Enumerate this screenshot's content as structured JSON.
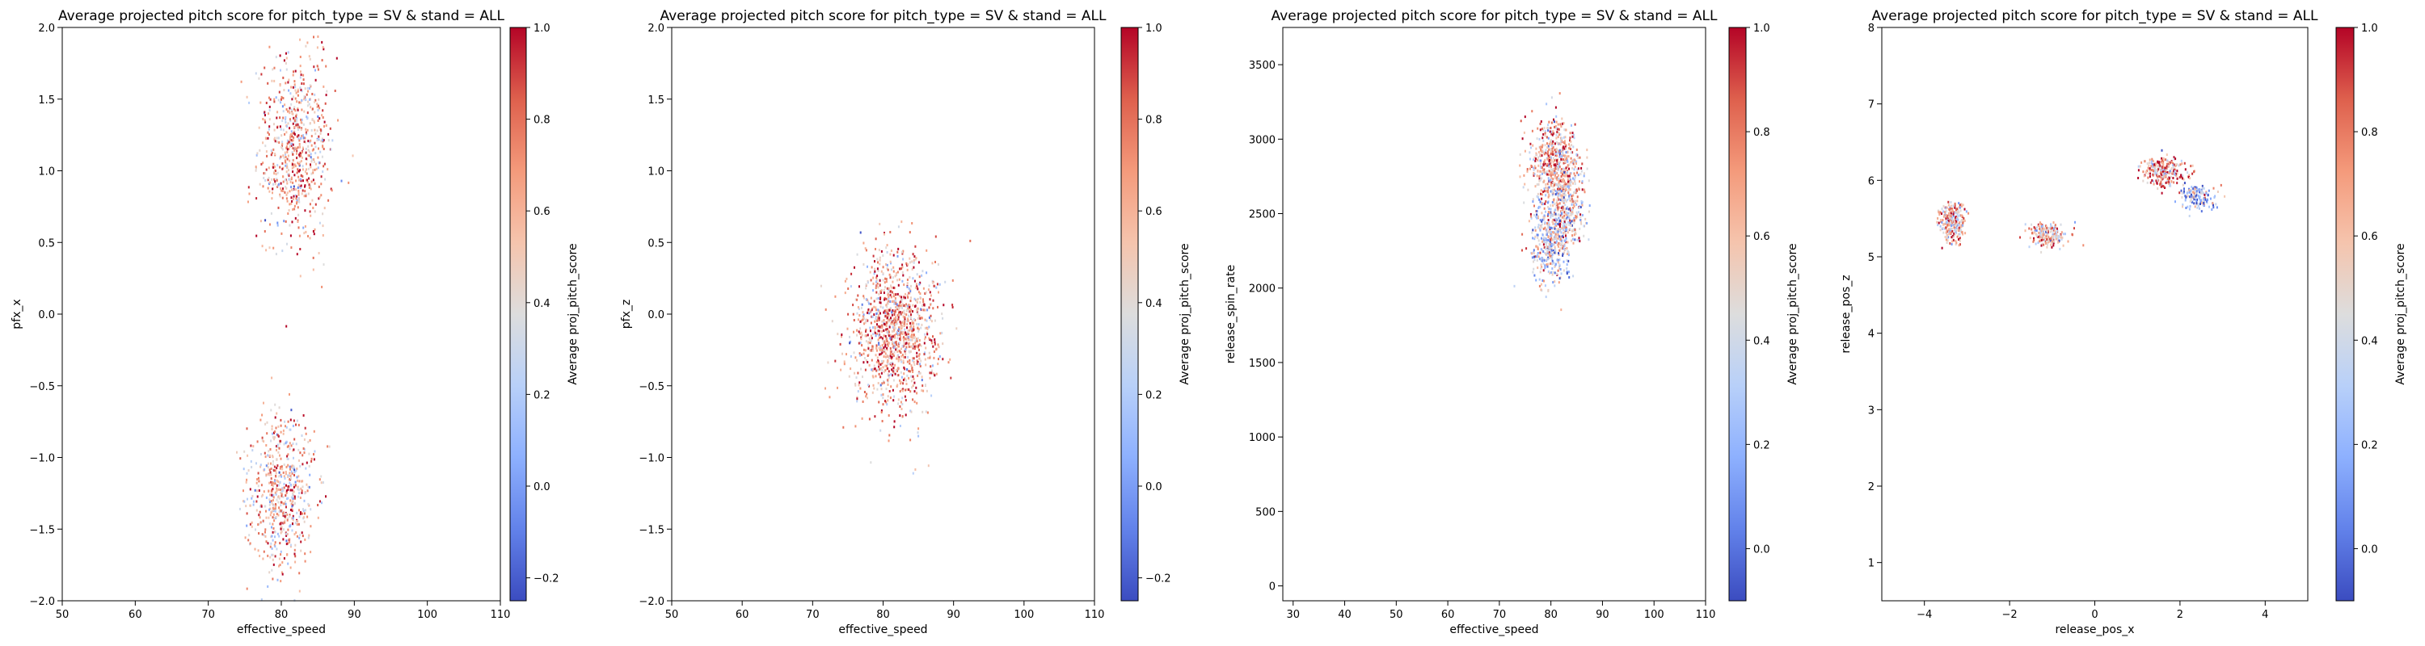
{
  "figure": {
    "title": "Average projected pitch score for pitch_type = SV & stand = ALL"
  },
  "chart_data": [
    {
      "type": "heatmap",
      "title": "Average projected pitch score for pitch_type = SV & stand = ALL",
      "xlabel": "effective_speed",
      "ylabel": "pfx_x",
      "xlim": [
        50,
        110
      ],
      "ylim": [
        -2.0,
        2.0
      ],
      "x_ticks": [
        "50",
        "60",
        "70",
        "80",
        "90",
        "100",
        "110"
      ],
      "y_ticks": [
        "−2.0",
        "−1.5",
        "−1.0",
        "−0.5",
        "0.0",
        "0.5",
        "1.0",
        "1.5",
        "2.0"
      ],
      "colorbar": {
        "label": "Average proj_pitch_score",
        "vmin": -0.25,
        "vmax": 1.0,
        "ticks": [
          "−0.2",
          "0.0",
          "0.2",
          "0.4",
          "0.6",
          "0.8",
          "1.0"
        ],
        "cmap": "coolwarm"
      },
      "clusters": [
        {
          "x": 82,
          "y": 1.15,
          "sx": 2.6,
          "sy": 0.32,
          "count": 700,
          "mean": 0.62
        },
        {
          "x": 80,
          "y": -1.25,
          "sx": 2.3,
          "sy": 0.28,
          "count": 600,
          "mean": 0.6
        }
      ],
      "grid": false
    },
    {
      "type": "heatmap",
      "title": "Average projected pitch score for pitch_type = SV & stand = ALL",
      "xlabel": "effective_speed",
      "ylabel": "pfx_z",
      "xlim": [
        50,
        110
      ],
      "ylim": [
        -2.0,
        2.0
      ],
      "x_ticks": [
        "50",
        "60",
        "70",
        "80",
        "90",
        "100",
        "110"
      ],
      "y_ticks": [
        "−2.0",
        "−1.5",
        "−1.0",
        "−0.5",
        "0.0",
        "0.5",
        "1.0",
        "1.5",
        "2.0"
      ],
      "colorbar": {
        "label": "Average proj_pitch_score",
        "vmin": -0.25,
        "vmax": 1.0,
        "ticks": [
          "−0.2",
          "0.0",
          "0.2",
          "0.4",
          "0.6",
          "0.8",
          "1.0"
        ],
        "cmap": "coolwarm"
      },
      "clusters": [
        {
          "x": 81.5,
          "y": -0.1,
          "sx": 3.0,
          "sy": 0.28,
          "count": 1200,
          "mean": 0.64
        }
      ],
      "grid": false
    },
    {
      "type": "heatmap",
      "title": "Average projected pitch score for pitch_type = SV & stand = ALL",
      "xlabel": "effective_speed",
      "ylabel": "release_spin_rate",
      "xlim": [
        28,
        110
      ],
      "ylim": [
        -100,
        3750
      ],
      "x_ticks": [
        "30",
        "40",
        "50",
        "60",
        "70",
        "80",
        "90",
        "100",
        "110"
      ],
      "y_ticks": [
        "0",
        "500",
        "1000",
        "1500",
        "2000",
        "2500",
        "3000",
        "3500"
      ],
      "colorbar": {
        "label": "Average proj_pitch_score",
        "vmin": -0.1,
        "vmax": 1.0,
        "ticks": [
          "0.0",
          "0.2",
          "0.4",
          "0.6",
          "0.8",
          "1.0"
        ],
        "cmap": "coolwarm"
      },
      "clusters": [
        {
          "x": 80.5,
          "y": 2850,
          "sx": 2.2,
          "sy": 140,
          "count": 500,
          "mean": 0.66
        },
        {
          "x": 83,
          "y": 2550,
          "sx": 2.0,
          "sy": 150,
          "count": 350,
          "mean": 0.5
        },
        {
          "x": 80,
          "y": 2300,
          "sx": 2.0,
          "sy": 130,
          "count": 400,
          "mean": 0.4
        }
      ],
      "grid": false
    },
    {
      "type": "heatmap",
      "title": "Average projected pitch score for pitch_type = SV & stand = ALL",
      "xlabel": "release_pos_x",
      "ylabel": "release_pos_z",
      "xlim": [
        -5,
        5
      ],
      "ylim": [
        0.5,
        8
      ],
      "x_ticks": [
        "−4",
        "−2",
        "0",
        "2",
        "4"
      ],
      "y_ticks": [
        "1",
        "2",
        "3",
        "4",
        "5",
        "6",
        "7",
        "8"
      ],
      "colorbar": {
        "label": "Average proj_pitch_score",
        "vmin": -0.1,
        "vmax": 1.0,
        "ticks": [
          "0.0",
          "0.2",
          "0.4",
          "0.6",
          "0.8",
          "1.0"
        ],
        "cmap": "coolwarm"
      },
      "clusters": [
        {
          "x": -3.35,
          "y": 5.45,
          "sx": 0.16,
          "sy": 0.13,
          "count": 260,
          "mean": 0.62
        },
        {
          "x": -1.1,
          "y": 5.28,
          "sx": 0.22,
          "sy": 0.08,
          "count": 200,
          "mean": 0.58
        },
        {
          "x": 1.6,
          "y": 6.12,
          "sx": 0.22,
          "sy": 0.1,
          "count": 260,
          "mean": 0.72
        },
        {
          "x": 2.4,
          "y": 5.78,
          "sx": 0.2,
          "sy": 0.08,
          "count": 150,
          "mean": 0.3
        }
      ],
      "grid": false
    }
  ]
}
